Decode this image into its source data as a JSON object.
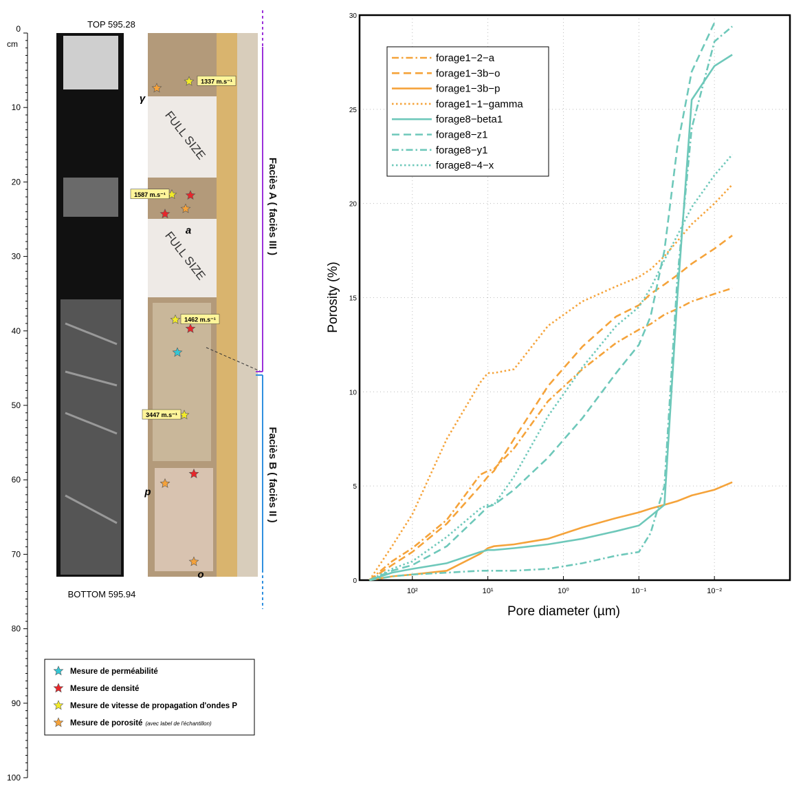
{
  "core_log": {
    "top_label": "TOP 595.28",
    "bottom_label": "BOTTOM 595.94",
    "depth_unit": "cm",
    "depth_lim": [
      0,
      100
    ],
    "depth_ticks": [
      0,
      10,
      20,
      30,
      40,
      50,
      60,
      70,
      80,
      90,
      100
    ],
    "full_size_labels": [
      "FULL SIZE",
      "FULL SIZE"
    ],
    "facies": [
      "Faciès A ( faciès III )",
      "Faciès B ( faciès II )"
    ],
    "samples": [
      {
        "label": "γ",
        "depth": 8.8
      },
      {
        "label": "a",
        "depth": 26.5
      },
      {
        "label": "p",
        "depth": 61.6
      },
      {
        "label": "o",
        "depth": 72.7
      }
    ],
    "velocities": [
      {
        "label": "1337 m.s⁻¹",
        "depth": 6.5
      },
      {
        "label": "1587 m.s⁻¹",
        "depth": 21.7
      },
      {
        "label": "1462 m.s⁻¹",
        "depth": 38.5
      },
      {
        "label": "3447 m.s⁻¹",
        "depth": 51.3
      }
    ],
    "legend": [
      {
        "label": "Mesure de perméabilité",
        "color": "#35c6d4",
        "depths": [
          42.9
        ]
      },
      {
        "label": "Mesure de densité",
        "color": "#e8262a",
        "depths": [
          21.8,
          24.3,
          39.7,
          59.2
        ]
      },
      {
        "label": "Mesure de vitesse de propagation d'ondes P",
        "color": "#f2ea2a",
        "depths": [
          6.5,
          21.7,
          38.5,
          51.3
        ]
      },
      {
        "label": "Mesure de porosité",
        "note": "(avec label de l'échantillon)",
        "color": "#f5a23a",
        "depths": [
          7.4,
          23.6,
          60.5,
          71
        ]
      }
    ]
  },
  "chart_data": {
    "type": "line",
    "xlabel": "Pore diameter (µm)",
    "ylabel": "Porosity (%)",
    "xlog": true,
    "grid": true,
    "legend_position": "upper-left",
    "xlim": [
      500,
      0.001
    ],
    "ylim": [
      0,
      30
    ],
    "xticks": [
      {
        "value": 100,
        "label": "10²"
      },
      {
        "value": 10,
        "label": "10¹"
      },
      {
        "value": 1,
        "label": "10⁰"
      },
      {
        "value": 0.1,
        "label": "10⁻¹"
      },
      {
        "value": 0.01,
        "label": "10⁻²"
      }
    ],
    "yticks": [
      0,
      5,
      10,
      15,
      20,
      25,
      30
    ],
    "x": [
      370,
      186,
      100,
      35,
      12.6,
      10,
      8.3,
      4.5,
      1.6,
      0.56,
      0.2,
      0.1,
      0.07,
      0.046,
      0.031,
      0.02,
      0.01,
      0.0058
    ],
    "series": [
      {
        "name": "forage1−2−a",
        "color": "#f5a33a",
        "dash": "dashdot",
        "values": [
          0,
          1,
          1.7,
          3.2,
          5.6,
          5.8,
          5.9,
          7,
          9.5,
          11.2,
          12.6,
          13.3,
          13.6,
          14.1,
          14.4,
          14.8,
          15.2,
          15.5
        ]
      },
      {
        "name": "forage1−3b−o",
        "color": "#f5a33a",
        "dash": "dashed",
        "values": [
          0,
          0.8,
          1.5,
          3,
          5,
          5.5,
          5.8,
          7.5,
          10.3,
          12.4,
          14,
          14.6,
          15.2,
          15.7,
          16.2,
          16.8,
          17.6,
          18.3
        ]
      },
      {
        "name": "forage1−3b−p",
        "color": "#f5a33a",
        "dash": "solid",
        "values": [
          0,
          0.2,
          0.3,
          0.5,
          1.4,
          1.7,
          1.8,
          1.9,
          2.2,
          2.8,
          3.3,
          3.6,
          3.8,
          4,
          4.2,
          4.5,
          4.8,
          5.2
        ]
      },
      {
        "name": "forage1−1−gamma",
        "color": "#f5a33a",
        "dash": "dotted",
        "values": [
          0,
          1.8,
          3.5,
          7.5,
          10.5,
          11,
          11,
          11.2,
          13.5,
          14.8,
          15.6,
          16.1,
          16.5,
          17.2,
          18,
          18.9,
          20,
          21
        ]
      },
      {
        "name": "forage8−beta1",
        "color": "#6ec8ba",
        "dash": "solid",
        "values": [
          0,
          0.4,
          0.6,
          0.9,
          1.5,
          1.6,
          1.6,
          1.7,
          1.9,
          2.2,
          2.6,
          2.9,
          3.4,
          4,
          15,
          25.5,
          27.3,
          27.9
        ]
      },
      {
        "name": "forage8−z1",
        "color": "#6ec8ba",
        "dash": "dashed",
        "values": [
          0,
          0.5,
          0.8,
          1.8,
          3.5,
          3.9,
          4,
          4.8,
          6.5,
          8.6,
          11,
          12.5,
          14,
          17.5,
          23,
          27,
          29.6,
          null
        ]
      },
      {
        "name": "forage8−y1",
        "color": "#6ec8ba",
        "dash": "dashdot",
        "values": [
          0,
          0.2,
          0.3,
          0.4,
          0.5,
          0.5,
          0.5,
          0.5,
          0.6,
          0.9,
          1.3,
          1.5,
          2.5,
          5,
          16,
          24,
          28.6,
          29.4
        ]
      },
      {
        "name": "forage8−4−x",
        "color": "#6ec8ba",
        "dash": "dotted",
        "values": [
          0,
          0.6,
          1,
          2.3,
          3.8,
          4,
          4,
          5.5,
          8.7,
          11.3,
          13.5,
          14.5,
          15.5,
          17,
          18.3,
          19.8,
          21.5,
          22.6
        ]
      }
    ]
  }
}
